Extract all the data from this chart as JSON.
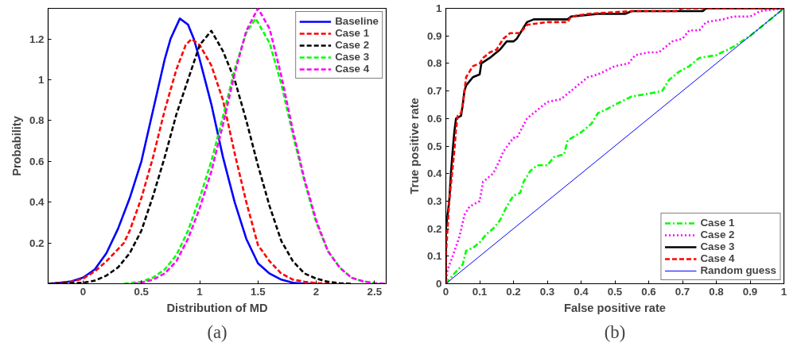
{
  "chart_data": [
    {
      "type": "line",
      "xlabel": "Distribution of MD",
      "ylabel": "Probability",
      "xlim": [
        -0.3,
        2.6
      ],
      "ylim": [
        0,
        1.35
      ],
      "xticks": [
        0,
        0.5,
        1,
        1.5,
        2,
        2.5
      ],
      "yticks": [
        0.2,
        0.4,
        0.6,
        0.8,
        1,
        1.2
      ],
      "grid": false,
      "legend": "top right",
      "annotations": [
        "(a)"
      ],
      "series": [
        {
          "name": "Baseline",
          "color": "#0000ff",
          "line_style": "solid",
          "x": [
            -0.3,
            -0.2,
            -0.1,
            0,
            0.1,
            0.2,
            0.3,
            0.4,
            0.5,
            0.6,
            0.7,
            0.75,
            0.83,
            0.9,
            0.95,
            1.0,
            1.1,
            1.2,
            1.3,
            1.4,
            1.5,
            1.6,
            1.7,
            1.8,
            1.9,
            2.0
          ],
          "values": [
            0,
            0.005,
            0.012,
            0.03,
            0.07,
            0.15,
            0.27,
            0.42,
            0.6,
            0.85,
            1.1,
            1.2,
            1.3,
            1.27,
            1.2,
            1.1,
            0.88,
            0.62,
            0.4,
            0.22,
            0.1,
            0.05,
            0.02,
            0.005,
            0,
            0
          ]
        },
        {
          "name": "Case 1",
          "color": "#ff0000",
          "line_style": "dashed",
          "x": [
            -0.3,
            -0.1,
            0,
            0.1,
            0.2,
            0.3,
            0.35,
            0.4,
            0.5,
            0.6,
            0.7,
            0.8,
            0.88,
            0.93,
            1.0,
            1.1,
            1.2,
            1.3,
            1.4,
            1.5,
            1.6,
            1.7,
            1.8,
            1.9,
            2.0,
            2.2
          ],
          "values": [
            0,
            0.01,
            0.025,
            0.06,
            0.11,
            0.17,
            0.2,
            0.26,
            0.42,
            0.62,
            0.85,
            1.05,
            1.17,
            1.2,
            1.17,
            1.07,
            0.9,
            0.64,
            0.4,
            0.19,
            0.11,
            0.05,
            0.02,
            0.01,
            0.003,
            0
          ]
        },
        {
          "name": "Case 2",
          "color": "#000000",
          "line_style": "dashed",
          "x": [
            -0.3,
            0,
            0.1,
            0.2,
            0.3,
            0.4,
            0.5,
            0.6,
            0.7,
            0.8,
            0.9,
            1.0,
            1.1,
            1.2,
            1.3,
            1.4,
            1.5,
            1.6,
            1.7,
            1.8,
            1.9,
            2.0,
            2.1,
            2.2,
            2.3
          ],
          "values": [
            0,
            0.005,
            0.015,
            0.04,
            0.08,
            0.15,
            0.26,
            0.43,
            0.62,
            0.83,
            1.0,
            1.17,
            1.24,
            1.14,
            1.0,
            0.8,
            0.58,
            0.38,
            0.21,
            0.11,
            0.05,
            0.025,
            0.01,
            0.003,
            0
          ]
        },
        {
          "name": "Case 3",
          "color": "#00ff00",
          "line_style": "dashed",
          "x": [
            0.35,
            0.5,
            0.6,
            0.7,
            0.8,
            0.9,
            1.0,
            1.1,
            1.2,
            1.3,
            1.4,
            1.48,
            1.6,
            1.7,
            1.8,
            1.9,
            2.0,
            2.1,
            2.2,
            2.3,
            2.4,
            2.5,
            2.6
          ],
          "values": [
            0,
            0.01,
            0.03,
            0.07,
            0.14,
            0.26,
            0.42,
            0.6,
            0.82,
            1.05,
            1.23,
            1.3,
            1.18,
            0.98,
            0.73,
            0.5,
            0.3,
            0.16,
            0.08,
            0.03,
            0.012,
            0.003,
            0
          ]
        },
        {
          "name": "Case 4",
          "color": "#ff00ff",
          "line_style": "dashed",
          "x": [
            0.43,
            0.5,
            0.6,
            0.7,
            0.8,
            0.9,
            1.0,
            1.1,
            1.2,
            1.3,
            1.4,
            1.5,
            1.6,
            1.7,
            1.8,
            1.9,
            2.0,
            2.1,
            2.2,
            2.3,
            2.4,
            2.5,
            2.6
          ],
          "values": [
            0,
            0.005,
            0.02,
            0.05,
            0.11,
            0.22,
            0.37,
            0.55,
            0.78,
            1.03,
            1.24,
            1.35,
            1.25,
            1.02,
            0.75,
            0.51,
            0.31,
            0.16,
            0.08,
            0.03,
            0.012,
            0.003,
            0
          ]
        }
      ]
    },
    {
      "type": "line",
      "xlabel": "False positive rate",
      "ylabel": "True positive rate",
      "xlim": [
        0,
        1
      ],
      "ylim": [
        0,
        1
      ],
      "xticks": [
        0,
        0.1,
        0.2,
        0.3,
        0.4,
        0.5,
        0.6,
        0.7,
        0.8,
        0.9,
        1
      ],
      "yticks": [
        0,
        0.1,
        0.2,
        0.3,
        0.4,
        0.5,
        0.6,
        0.7,
        0.8,
        0.9,
        1
      ],
      "grid": false,
      "legend": "bottom right",
      "annotations": [
        "(b)"
      ],
      "series": [
        {
          "name": "Case 1",
          "color": "#00ff00",
          "line_style": "dashdot",
          "x": [
            0,
            0.02,
            0.05,
            0.06,
            0.08,
            0.1,
            0.12,
            0.14,
            0.16,
            0.18,
            0.2,
            0.22,
            0.23,
            0.25,
            0.27,
            0.3,
            0.32,
            0.35,
            0.36,
            0.4,
            0.43,
            0.45,
            0.47,
            0.5,
            0.55,
            0.6,
            0.64,
            0.66,
            0.69,
            0.72,
            0.75,
            0.8,
            0.85,
            0.9,
            0.95,
            1
          ],
          "values": [
            0,
            0.03,
            0.07,
            0.12,
            0.13,
            0.15,
            0.18,
            0.2,
            0.23,
            0.28,
            0.32,
            0.33,
            0.37,
            0.41,
            0.43,
            0.43,
            0.46,
            0.47,
            0.52,
            0.55,
            0.58,
            0.62,
            0.63,
            0.65,
            0.68,
            0.69,
            0.7,
            0.74,
            0.77,
            0.79,
            0.82,
            0.83,
            0.86,
            0.9,
            0.95,
            1
          ]
        },
        {
          "name": "Case 2",
          "color": "#ff00ff",
          "line_style": "dotted",
          "x": [
            0,
            0.005,
            0.02,
            0.04,
            0.055,
            0.07,
            0.1,
            0.11,
            0.14,
            0.16,
            0.17,
            0.2,
            0.21,
            0.24,
            0.26,
            0.3,
            0.34,
            0.38,
            0.42,
            0.45,
            0.5,
            0.54,
            0.56,
            0.6,
            0.63,
            0.67,
            0.7,
            0.72,
            0.75,
            0.77,
            0.82,
            0.85,
            0.9,
            0.93,
            1
          ],
          "values": [
            0,
            0.05,
            0.1,
            0.17,
            0.25,
            0.28,
            0.3,
            0.37,
            0.4,
            0.45,
            0.48,
            0.53,
            0.53,
            0.6,
            0.62,
            0.66,
            0.67,
            0.71,
            0.75,
            0.76,
            0.79,
            0.8,
            0.83,
            0.84,
            0.84,
            0.88,
            0.89,
            0.92,
            0.92,
            0.95,
            0.96,
            0.97,
            0.97,
            0.99,
            1
          ]
        },
        {
          "name": "Case 3",
          "color": "#000000",
          "line_style": "solid",
          "x": [
            0,
            0,
            0.01,
            0.015,
            0.02,
            0.025,
            0.03,
            0.045,
            0.05,
            0.055,
            0.06,
            0.08,
            0.1,
            0.105,
            0.13,
            0.16,
            0.18,
            0.2,
            0.21,
            0.23,
            0.24,
            0.26,
            0.36,
            0.37,
            0.45,
            0.53,
            0.55,
            0.76,
            0.77,
            1
          ],
          "values": [
            0,
            0.2,
            0.3,
            0.4,
            0.48,
            0.55,
            0.6,
            0.61,
            0.65,
            0.7,
            0.72,
            0.75,
            0.76,
            0.8,
            0.82,
            0.85,
            0.88,
            0.88,
            0.89,
            0.93,
            0.95,
            0.96,
            0.96,
            0.97,
            0.98,
            0.98,
            0.99,
            0.99,
            1,
            1
          ]
        },
        {
          "name": "Case 4",
          "color": "#ff0000",
          "line_style": "dashed",
          "x": [
            0,
            0,
            0.01,
            0.02,
            0.025,
            0.03,
            0.035,
            0.045,
            0.05,
            0.055,
            0.06,
            0.08,
            0.1,
            0.11,
            0.13,
            0.15,
            0.17,
            0.19,
            0.22,
            0.24,
            0.3,
            0.36,
            0.37,
            0.42,
            0.55,
            0.68,
            0.7,
            1
          ],
          "values": [
            0,
            0.1,
            0.3,
            0.42,
            0.48,
            0.56,
            0.61,
            0.62,
            0.65,
            0.7,
            0.75,
            0.79,
            0.8,
            0.82,
            0.84,
            0.85,
            0.89,
            0.91,
            0.91,
            0.94,
            0.95,
            0.95,
            0.97,
            0.98,
            0.99,
            0.99,
            1,
            1
          ]
        },
        {
          "name": "Random guess",
          "color": "#0000ff",
          "line_style": "solid",
          "x": [
            0,
            1
          ],
          "values": [
            0,
            1
          ]
        }
      ]
    }
  ]
}
